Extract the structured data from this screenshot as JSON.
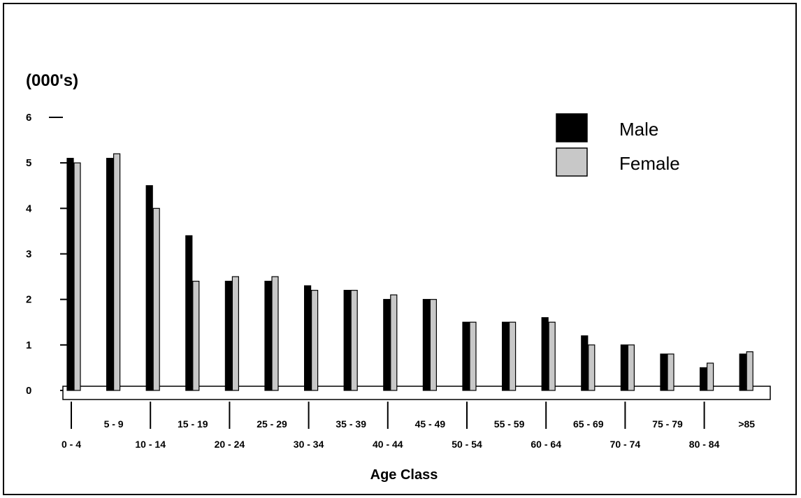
{
  "chart_data": {
    "type": "bar",
    "unit_label": "(000's)",
    "xlabel": "Age Class",
    "ylabel": "",
    "ylim": [
      0,
      6
    ],
    "yticks": [
      0,
      1,
      2,
      3,
      4,
      5,
      6
    ],
    "categories": [
      "0 - 4",
      "5 - 9",
      "10 - 14",
      "15 - 19",
      "20 - 24",
      "25 - 29",
      "30 - 34",
      "35 - 39",
      "40 - 44",
      "45 - 49",
      "50 - 54",
      "55 - 59",
      "60 - 64",
      "65 - 69",
      "70 - 74",
      "75 - 79",
      "80 - 84",
      ">85"
    ],
    "series": [
      {
        "name": "Male",
        "color": "#000000",
        "values": [
          5.1,
          5.1,
          4.5,
          3.4,
          2.4,
          2.4,
          2.3,
          2.2,
          2.0,
          2.0,
          1.5,
          1.5,
          1.6,
          1.2,
          1.0,
          0.8,
          0.5,
          0.8
        ]
      },
      {
        "name": "Female",
        "color": "#c8c8c8",
        "values": [
          5.0,
          5.2,
          4.0,
          2.4,
          2.5,
          2.5,
          2.2,
          2.2,
          2.1,
          2.0,
          1.5,
          1.5,
          1.5,
          1.0,
          1.0,
          0.8,
          0.6,
          0.85
        ]
      }
    ],
    "legend": "top-right",
    "grid": false
  }
}
